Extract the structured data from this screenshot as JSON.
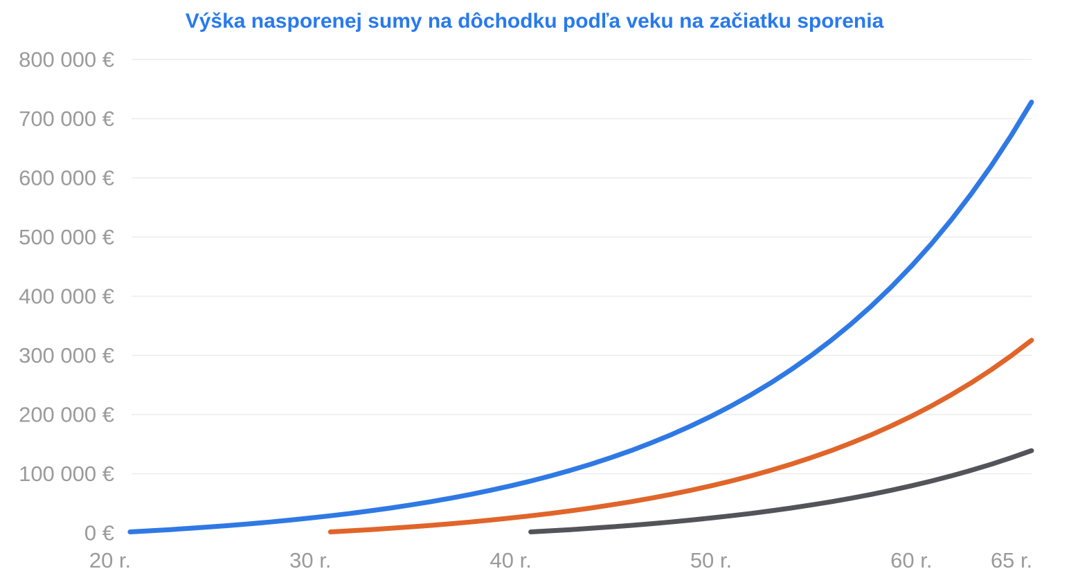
{
  "chart_data": {
    "type": "line",
    "title": "Výška nasporenej sumy na dôchodku podľa veku na začiatku sporenia",
    "title_color": "#2879ee",
    "background_color": "#ffffff",
    "grid_color": "#ebebeb",
    "axis_label_color": "#9a9a9a",
    "legend": {
      "visible": false
    },
    "x_axis": {
      "min": 20,
      "max": 66,
      "unit": "r.",
      "ticks": [
        {
          "value": 20,
          "label": "20 r."
        },
        {
          "value": 30,
          "label": "30 r."
        },
        {
          "value": 40,
          "label": "40 r."
        },
        {
          "value": 50,
          "label": "50 r."
        },
        {
          "value": 60,
          "label": "60 r."
        },
        {
          "value": 65,
          "label": "65 r."
        }
      ]
    },
    "y_axis": {
      "min": 0,
      "max": 800000,
      "tick_step": 100000,
      "unit": "€",
      "ticks": [
        {
          "value": 0,
          "label": "0 €"
        },
        {
          "value": 100000,
          "label": "100 000 €"
        },
        {
          "value": 200000,
          "label": "200 000 €"
        },
        {
          "value": 300000,
          "label": "300 000 €"
        },
        {
          "value": 400000,
          "label": "400 000 €"
        },
        {
          "value": 500000,
          "label": "500 000 €"
        },
        {
          "value": 600000,
          "label": "600 000 €"
        },
        {
          "value": 700000,
          "label": "700 000 €"
        },
        {
          "value": 800000,
          "label": "800 000 €"
        }
      ],
      "gridlines": [
        100000,
        200000,
        300000,
        400000,
        500000,
        600000,
        700000,
        800000
      ]
    },
    "series": [
      {
        "id": "start-age-20",
        "start_age": 20,
        "color": "#2f79e4",
        "points": [
          [
            21,
            1740
          ],
          [
            22,
            3619
          ],
          [
            23,
            5649
          ],
          [
            24,
            7841
          ],
          [
            25,
            10208
          ],
          [
            26,
            12765
          ],
          [
            27,
            15526
          ],
          [
            28,
            18508
          ],
          [
            29,
            21728
          ],
          [
            30,
            25207
          ],
          [
            31,
            28963
          ],
          [
            32,
            33020
          ],
          [
            33,
            37402
          ],
          [
            34,
            42134
          ],
          [
            35,
            47245
          ],
          [
            36,
            52764
          ],
          [
            37,
            58725
          ],
          [
            38,
            65163
          ],
          [
            39,
            72117
          ],
          [
            40,
            79626
          ],
          [
            41,
            87736
          ],
          [
            42,
            96495
          ],
          [
            43,
            105954
          ],
          [
            44,
            116171
          ],
          [
            45,
            127204
          ],
          [
            46,
            139121
          ],
          [
            47,
            151990
          ],
          [
            48,
            165890
          ],
          [
            49,
            180901
          ],
          [
            50,
            197113
          ],
          [
            51,
            214622
          ],
          [
            52,
            233531
          ],
          [
            53,
            253954
          ],
          [
            54,
            276010
          ],
          [
            55,
            299831
          ],
          [
            56,
            325558
          ],
          [
            57,
            353342
          ],
          [
            58,
            383350
          ],
          [
            59,
            415758
          ],
          [
            60,
            450758
          ],
          [
            61,
            488559
          ],
          [
            62,
            529384
          ],
          [
            63,
            573474
          ],
          [
            64,
            621092
          ],
          [
            65,
            672520
          ],
          [
            66,
            728061
          ]
        ]
      },
      {
        "id": "start-age-30",
        "start_age": 30,
        "color": "#e0652a",
        "points": [
          [
            31,
            1740
          ],
          [
            32,
            3619
          ],
          [
            33,
            5649
          ],
          [
            34,
            7841
          ],
          [
            35,
            10208
          ],
          [
            36,
            12765
          ],
          [
            37,
            15526
          ],
          [
            38,
            18508
          ],
          [
            39,
            21728
          ],
          [
            40,
            25207
          ],
          [
            41,
            28963
          ],
          [
            42,
            33020
          ],
          [
            43,
            37402
          ],
          [
            44,
            42134
          ],
          [
            45,
            47245
          ],
          [
            46,
            52764
          ],
          [
            47,
            58725
          ],
          [
            48,
            65163
          ],
          [
            49,
            72117
          ],
          [
            50,
            79626
          ],
          [
            51,
            87736
          ],
          [
            52,
            96495
          ],
          [
            53,
            105954
          ],
          [
            54,
            116171
          ],
          [
            55,
            127204
          ],
          [
            56,
            139121
          ],
          [
            57,
            151990
          ],
          [
            58,
            165890
          ],
          [
            59,
            180901
          ],
          [
            60,
            197113
          ],
          [
            61,
            214622
          ],
          [
            62,
            233531
          ],
          [
            63,
            253954
          ],
          [
            64,
            276010
          ],
          [
            65,
            299831
          ],
          [
            66,
            325558
          ]
        ]
      },
      {
        "id": "start-age-40",
        "start_age": 40,
        "color": "#53535a",
        "points": [
          [
            41,
            1740
          ],
          [
            42,
            3619
          ],
          [
            43,
            5649
          ],
          [
            44,
            7841
          ],
          [
            45,
            10208
          ],
          [
            46,
            12765
          ],
          [
            47,
            15526
          ],
          [
            48,
            18508
          ],
          [
            49,
            21728
          ],
          [
            50,
            25207
          ],
          [
            51,
            28963
          ],
          [
            52,
            33020
          ],
          [
            53,
            37402
          ],
          [
            54,
            42134
          ],
          [
            55,
            47245
          ],
          [
            56,
            52764
          ],
          [
            57,
            58725
          ],
          [
            58,
            65163
          ],
          [
            59,
            72117
          ],
          [
            60,
            79626
          ],
          [
            61,
            87736
          ],
          [
            62,
            96495
          ],
          [
            63,
            105954
          ],
          [
            64,
            116171
          ],
          [
            65,
            127204
          ],
          [
            66,
            139121
          ]
        ]
      }
    ]
  }
}
